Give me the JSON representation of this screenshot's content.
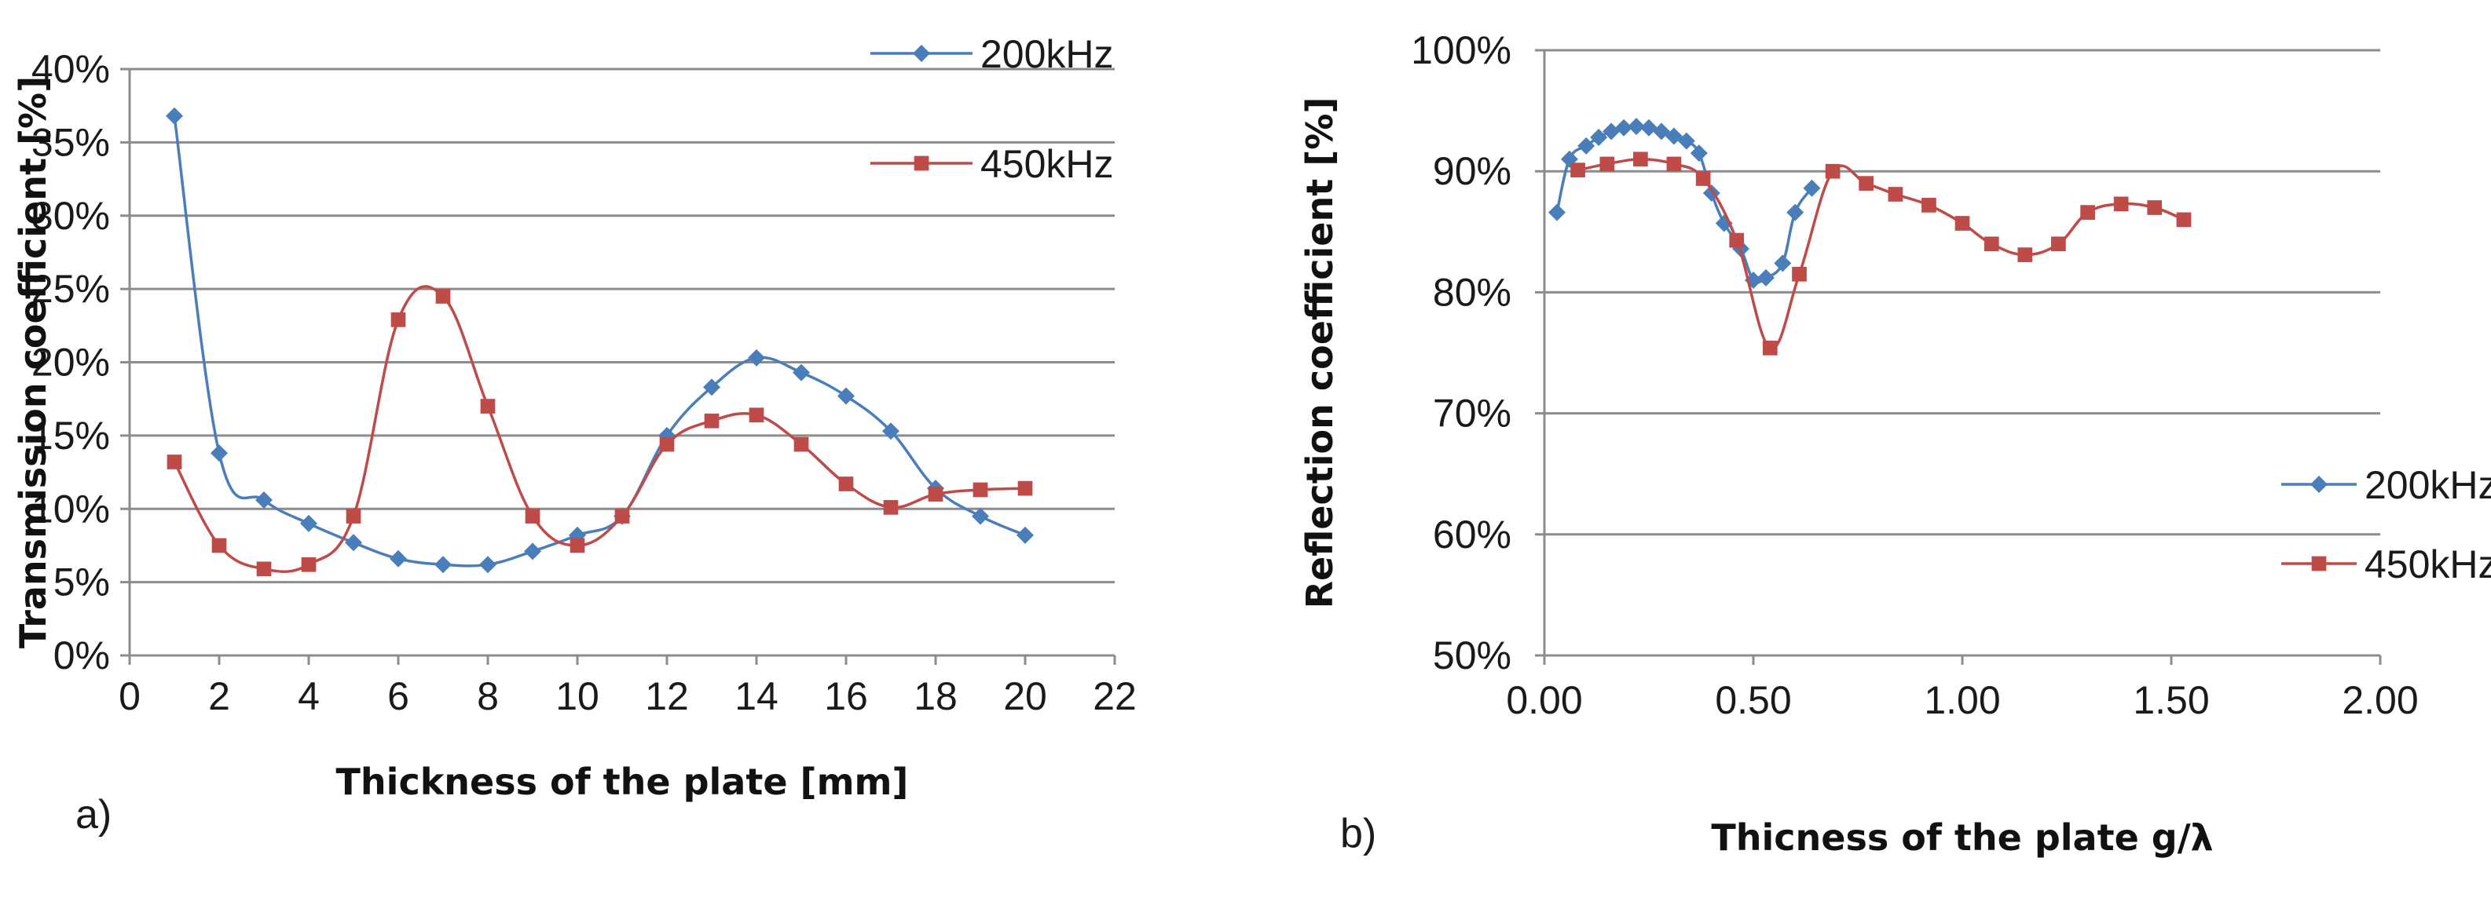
{
  "chart_data": [
    {
      "type": "line",
      "panel_label": "a)",
      "title": "",
      "xlabel": "Thickness of the plate [mm]",
      "ylabel": "Transmission coefficient [%]",
      "xlim": [
        0,
        22
      ],
      "ylim": [
        0,
        40
      ],
      "xticks": [
        0,
        2,
        4,
        6,
        8,
        10,
        12,
        14,
        16,
        18,
        20,
        22
      ],
      "yticks": [
        0,
        5,
        10,
        15,
        20,
        25,
        30,
        35,
        40
      ],
      "y_unit": "%",
      "grid": true,
      "legend_position": "top-right",
      "series": [
        {
          "name": "200kHz",
          "color": "#4a7ebb",
          "marker": "diamond",
          "x": [
            1,
            2,
            3,
            4,
            5,
            6,
            7,
            8,
            9,
            10,
            11,
            12,
            13,
            14,
            15,
            16,
            17,
            18,
            19,
            20
          ],
          "y": [
            36.8,
            13.8,
            10.6,
            9.0,
            7.7,
            6.6,
            6.2,
            6.2,
            7.1,
            8.2,
            9.5,
            15.0,
            18.3,
            20.3,
            19.3,
            17.7,
            15.3,
            11.4,
            9.5,
            8.2
          ]
        },
        {
          "name": "450kHz",
          "color": "#be4b48",
          "marker": "square",
          "x": [
            1,
            2,
            3,
            4,
            5,
            6,
            7,
            8,
            9,
            10,
            11,
            12,
            13,
            14,
            15,
            16,
            17,
            18,
            19,
            20
          ],
          "y": [
            13.2,
            7.5,
            5.9,
            6.2,
            9.5,
            22.9,
            24.5,
            17.0,
            9.5,
            7.5,
            9.5,
            14.4,
            16.0,
            16.4,
            14.4,
            11.7,
            10.1,
            11.0,
            11.3,
            11.4
          ]
        }
      ]
    },
    {
      "type": "line",
      "panel_label": "b)",
      "title": "",
      "xlabel": "Thicness of the plate g/λ",
      "ylabel": "Reflection coefficient [%]",
      "xlim": [
        0,
        2
      ],
      "ylim": [
        50,
        100
      ],
      "xticks": [
        0,
        0.5,
        1,
        1.5,
        2
      ],
      "xtick_labels": [
        "0.00",
        "0.50",
        "1.00",
        "1.50",
        "2.00"
      ],
      "yticks": [
        50,
        60,
        70,
        80,
        90,
        100
      ],
      "y_unit": "%",
      "grid": true,
      "legend_position": "right",
      "series": [
        {
          "name": "200kHz",
          "color": "#4a7ebb",
          "marker": "diamond",
          "x": [
            0.03,
            0.06,
            0.1,
            0.13,
            0.16,
            0.19,
            0.22,
            0.25,
            0.28,
            0.31,
            0.34,
            0.37,
            0.4,
            0.43,
            0.47,
            0.5,
            0.53,
            0.57,
            0.6,
            0.64
          ],
          "y": [
            86.6,
            91.0,
            92.1,
            92.8,
            93.3,
            93.6,
            93.7,
            93.6,
            93.3,
            92.9,
            92.5,
            91.5,
            88.2,
            85.7,
            83.6,
            81.0,
            81.2,
            82.4,
            86.6,
            88.6
          ]
        },
        {
          "name": "450kHz",
          "color": "#be4b48",
          "marker": "square",
          "x": [
            0.08,
            0.15,
            0.23,
            0.31,
            0.38,
            0.46,
            0.54,
            0.61,
            0.69,
            0.77,
            0.84,
            0.92,
            1.0,
            1.07,
            1.15,
            1.23,
            1.3,
            1.38,
            1.46,
            1.53
          ],
          "y": [
            90.1,
            90.6,
            91.0,
            90.6,
            89.4,
            84.3,
            75.4,
            81.5,
            90.0,
            89.0,
            88.1,
            87.2,
            85.7,
            84.0,
            83.1,
            84.0,
            86.6,
            87.3,
            87.0,
            86.0
          ]
        }
      ]
    }
  ]
}
